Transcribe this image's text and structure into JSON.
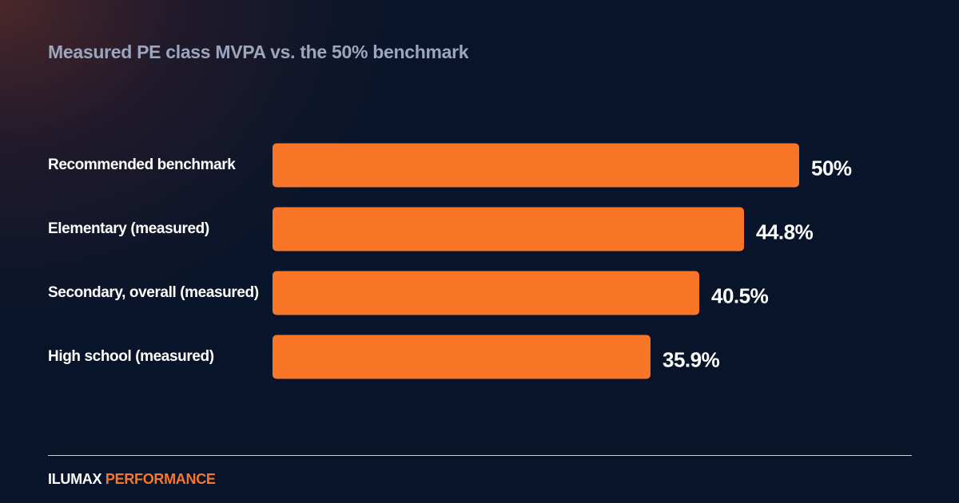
{
  "title": "Measured PE class MVPA vs. the 50% benchmark",
  "colors": {
    "background": "#08142a",
    "glow": "#4e282a",
    "bar": "#f97629",
    "title": "#9ba6bd",
    "label": "#ffffff",
    "divider": "#c9ced9",
    "brand_accent": "#f97629"
  },
  "chart_data": {
    "type": "bar",
    "orientation": "horizontal",
    "title": "Measured PE class MVPA vs. the 50% benchmark",
    "categories": [
      "Recommended benchmark",
      "Elementary (measured)",
      "Secondary, overall (measured)",
      "High school (measured)"
    ],
    "values": [
      50,
      44.8,
      40.5,
      35.9
    ],
    "value_labels": [
      "50%",
      "44.8%",
      "40.5%",
      "35.9%"
    ],
    "xlim": [
      0,
      50
    ],
    "grid": false,
    "legend": "none"
  },
  "brand": {
    "part1": "ILUMAX",
    "part2": "PERFORMANCE"
  }
}
